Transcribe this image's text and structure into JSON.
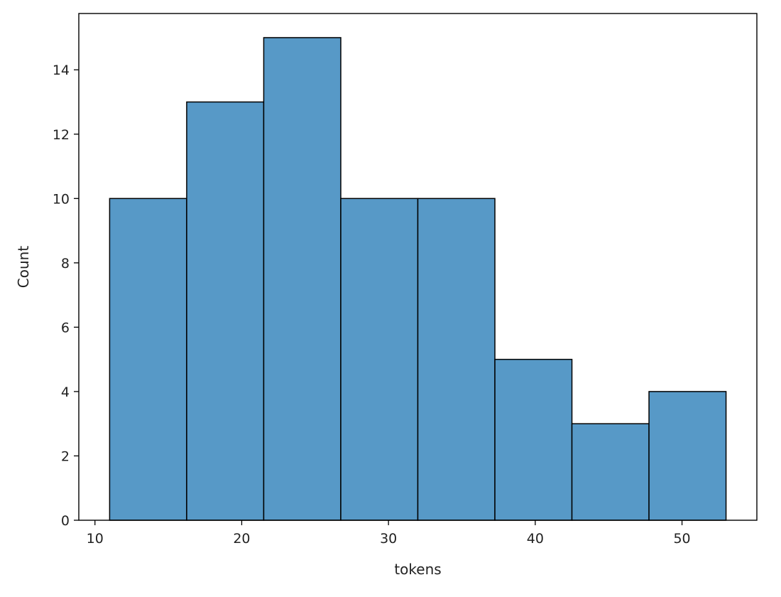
{
  "chart_data": {
    "type": "bar",
    "title": "",
    "xlabel": "tokens",
    "ylabel": "Count",
    "bins": [
      {
        "start": 11.0,
        "end": 16.25,
        "count": 10
      },
      {
        "start": 16.25,
        "end": 21.5,
        "count": 13
      },
      {
        "start": 21.5,
        "end": 26.75,
        "count": 15
      },
      {
        "start": 26.75,
        "end": 32.0,
        "count": 10
      },
      {
        "start": 32.0,
        "end": 37.25,
        "count": 10
      },
      {
        "start": 37.25,
        "end": 42.5,
        "count": 5
      },
      {
        "start": 42.5,
        "end": 47.75,
        "count": 3
      },
      {
        "start": 47.75,
        "end": 53.0,
        "count": 4
      }
    ],
    "xlim": [
      8.9,
      55.1
    ],
    "ylim": [
      0,
      15.75
    ],
    "xticks": [
      10,
      20,
      30,
      40,
      50
    ],
    "yticks": [
      0,
      2,
      4,
      6,
      8,
      10,
      12,
      14
    ],
    "grid": false,
    "colors": {
      "bar_fill": "#5799c7",
      "bar_edge": "#000000",
      "axis": "#000000"
    }
  }
}
